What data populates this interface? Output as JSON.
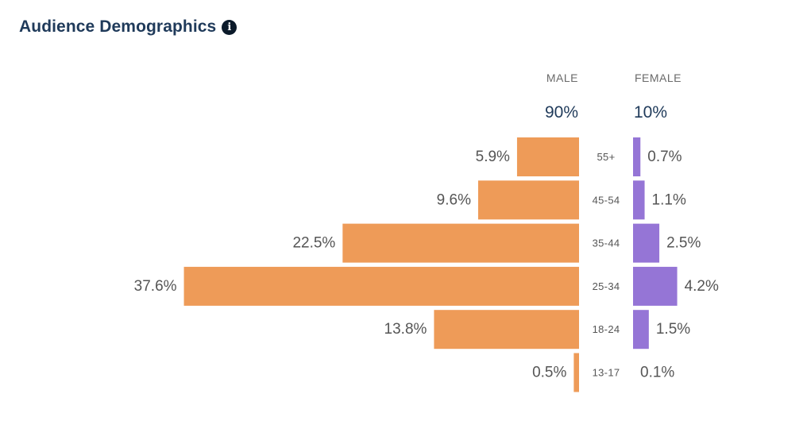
{
  "header": {
    "title": "Audience Demographics",
    "info_icon": "info-circle-icon"
  },
  "genders": {
    "male": {
      "label": "MALE",
      "percent": "90%"
    },
    "female": {
      "label": "FEMALE",
      "percent": "10%"
    }
  },
  "colors": {
    "male": "#ee9b58",
    "female": "#9575d6",
    "title": "#1f3a5a"
  },
  "chart_data": {
    "type": "bar",
    "categories": [
      "55+",
      "45-54",
      "35-44",
      "25-34",
      "18-24",
      "13-17"
    ],
    "series": [
      {
        "name": "MALE",
        "values": [
          5.9,
          9.6,
          22.5,
          37.6,
          13.8,
          0.5
        ],
        "labels": [
          "5.9%",
          "9.6%",
          "22.5%",
          "37.6%",
          "13.8%",
          "0.5%"
        ]
      },
      {
        "name": "FEMALE",
        "values": [
          0.7,
          1.1,
          2.5,
          4.2,
          1.5,
          0.1
        ],
        "labels": [
          "0.7%",
          "1.1%",
          "2.5%",
          "4.2%",
          "1.5%",
          "0.1%"
        ]
      }
    ],
    "title": "Audience Demographics"
  }
}
